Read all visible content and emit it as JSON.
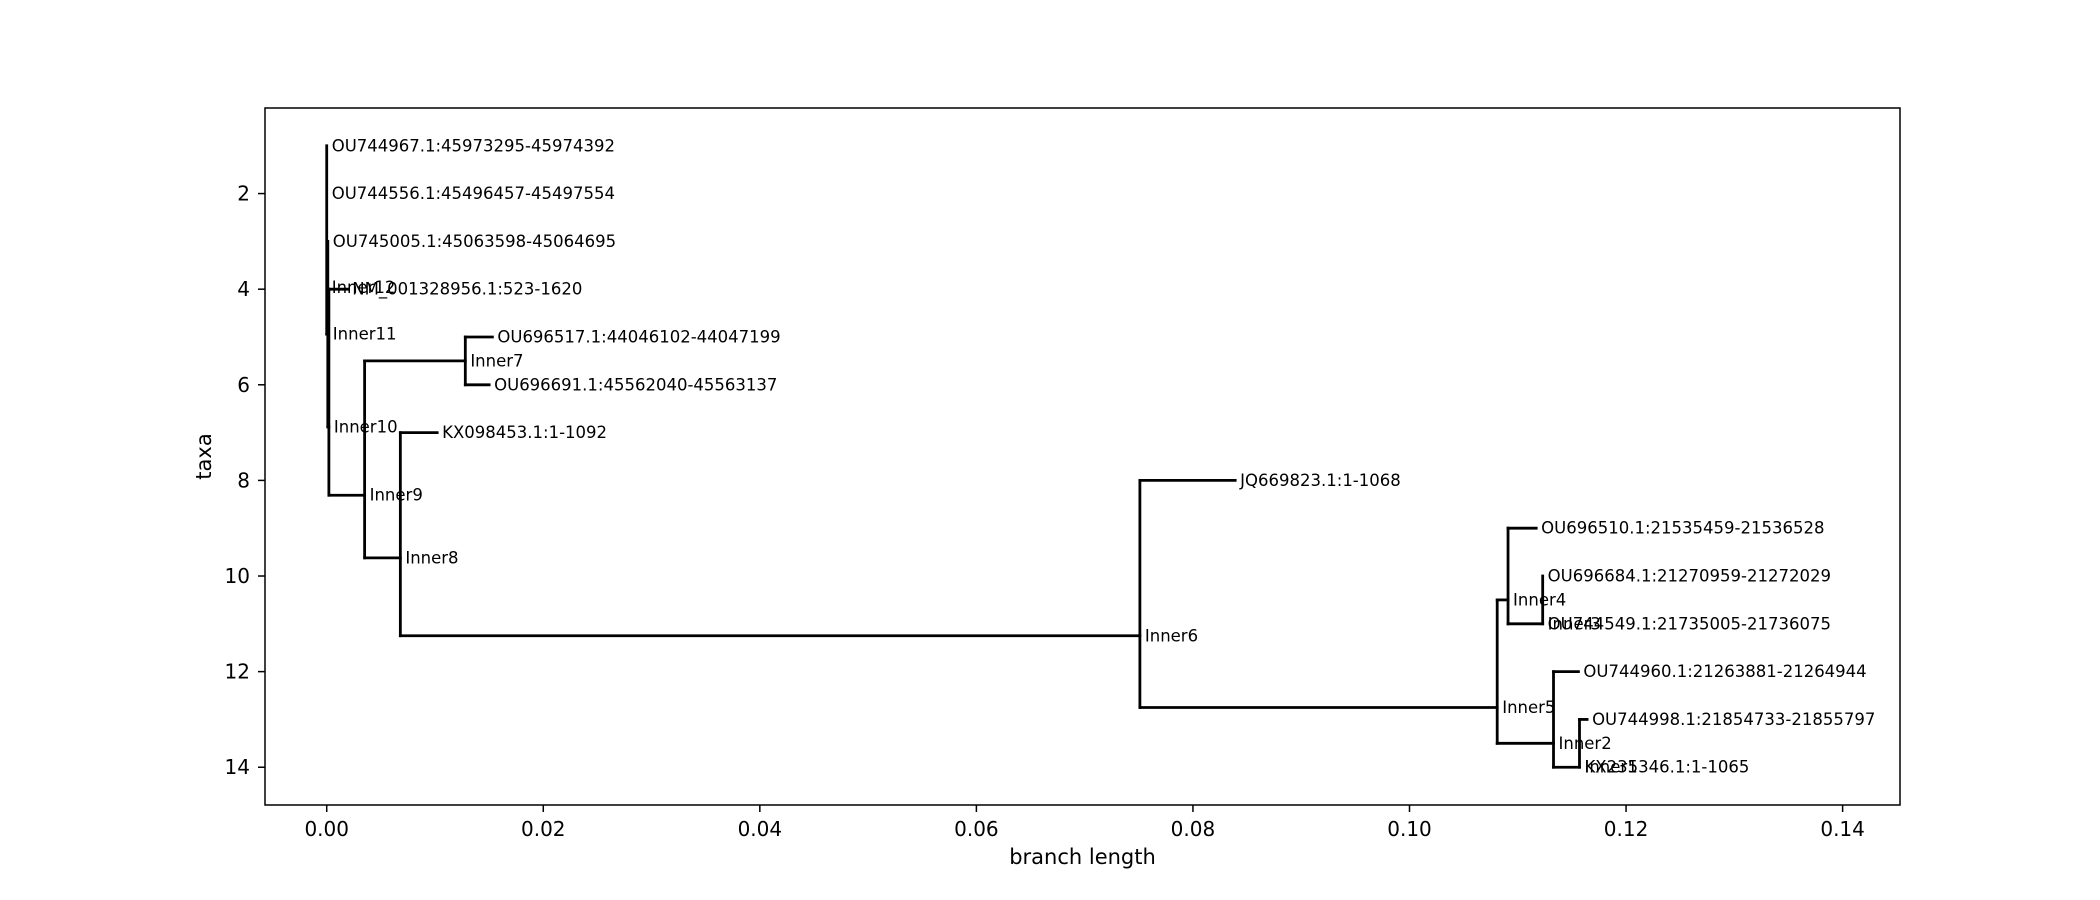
{
  "chart_data": {
    "type": "dendrogram",
    "xlabel": "branch length",
    "ylabel": "taxa",
    "xlim": [
      -0.0057,
      0.1453
    ],
    "ylim": [
      14.79,
      0.21
    ],
    "x_ticks": [
      0.0,
      0.02,
      0.04,
      0.06,
      0.08,
      0.1,
      0.12,
      0.14
    ],
    "x_tick_labels": [
      "0.00",
      "0.02",
      "0.04",
      "0.06",
      "0.08",
      "0.10",
      "0.12",
      "0.14"
    ],
    "y_ticks": [
      2,
      4,
      6,
      8,
      10,
      12,
      14
    ],
    "y_tick_labels": [
      "2",
      "4",
      "6",
      "8",
      "10",
      "12",
      "14"
    ],
    "nodes": [
      {
        "id": "Inner12",
        "label": "Inner12",
        "x": 0.0,
        "y": 3.97,
        "parent": null
      },
      {
        "id": "OU744967.1:45973295-45974392",
        "label": "OU744967.1:45973295-45974392",
        "x": 0.0,
        "y": 1,
        "parent": "Inner12"
      },
      {
        "id": "OU744556.1:45496457-45497554",
        "label": "OU744556.1:45496457-45497554",
        "x": 0.0,
        "y": 2,
        "parent": "Inner12"
      },
      {
        "id": "Inner11",
        "label": "Inner11",
        "x": 0.0001,
        "y": 4.94,
        "parent": "Inner12"
      },
      {
        "id": "OU745005.1:45063598-45064695",
        "label": "OU745005.1:45063598-45064695",
        "x": 0.0001,
        "y": 3,
        "parent": "Inner11"
      },
      {
        "id": "Inner10",
        "label": "Inner10",
        "x": 0.0002,
        "y": 6.88,
        "parent": "Inner11"
      },
      {
        "id": "NM_001328956.1:523-1620",
        "label": "NM_001328956.1:523-1620",
        "x": 0.0019,
        "y": 4,
        "parent": "Inner10"
      },
      {
        "id": "Inner9",
        "label": "Inner9",
        "x": 0.0035,
        "y": 8.31,
        "parent": "Inner10"
      },
      {
        "id": "Inner7",
        "label": "Inner7",
        "x": 0.0128,
        "y": 5.5,
        "parent": "Inner9"
      },
      {
        "id": "OU696517.1:44046102-44047199",
        "label": "OU696517.1:44046102-44047199",
        "x": 0.0153,
        "y": 5,
        "parent": "Inner7"
      },
      {
        "id": "OU696691.1:45562040-45563137",
        "label": "OU696691.1:45562040-45563137",
        "x": 0.015,
        "y": 6,
        "parent": "Inner7"
      },
      {
        "id": "Inner8",
        "label": "Inner8",
        "x": 0.0068,
        "y": 9.62,
        "parent": "Inner9"
      },
      {
        "id": "KX098453.1:1-1092",
        "label": "KX098453.1:1-1092",
        "x": 0.0102,
        "y": 7,
        "parent": "Inner8"
      },
      {
        "id": "Inner6",
        "label": "Inner6",
        "x": 0.0751,
        "y": 11.25,
        "parent": "Inner8"
      },
      {
        "id": "JQ669823.1:1-1068",
        "label": "JQ669823.1:1-1068",
        "x": 0.0839,
        "y": 8,
        "parent": "Inner6"
      },
      {
        "id": "Inner5",
        "label": "Inner5",
        "x": 0.1081,
        "y": 12.75,
        "parent": "Inner6"
      },
      {
        "id": "Inner4",
        "label": "Inner4",
        "x": 0.1091,
        "y": 10.5,
        "parent": "Inner5"
      },
      {
        "id": "OU696510.1:21535459-21536528",
        "label": "OU696510.1:21535459-21536528",
        "x": 0.1117,
        "y": 9,
        "parent": "Inner4"
      },
      {
        "id": "Inner3",
        "label": "Inner3",
        "x": 0.1123,
        "y": 11,
        "parent": "Inner4"
      },
      {
        "id": "OU696684.1:21270959-21272029",
        "label": "OU696684.1:21270959-21272029",
        "x": 0.1123,
        "y": 10,
        "parent": "Inner3"
      },
      {
        "id": "OU744549.1:21735005-21736075",
        "label": "OU744549.1:21735005-21736075",
        "x": 0.1123,
        "y": 11,
        "parent": "Inner3"
      },
      {
        "id": "Inner2",
        "label": "Inner2",
        "x": 0.1133,
        "y": 13.5,
        "parent": "Inner5"
      },
      {
        "id": "OU744960.1:21263881-21264944",
        "label": "OU744960.1:21263881-21264944",
        "x": 0.1156,
        "y": 12,
        "parent": "Inner2"
      },
      {
        "id": "Inner1",
        "label": "Inner1",
        "x": 0.1157,
        "y": 14,
        "parent": "Inner2"
      },
      {
        "id": "OU744998.1:21854733-21855797",
        "label": "OU744998.1:21854733-21855797",
        "x": 0.1164,
        "y": 13,
        "parent": "Inner1"
      },
      {
        "id": "KX235346.1:1-1065",
        "label": "KX235346.1:1-1065",
        "x": 0.1157,
        "y": 14,
        "parent": "Inner1"
      }
    ]
  }
}
